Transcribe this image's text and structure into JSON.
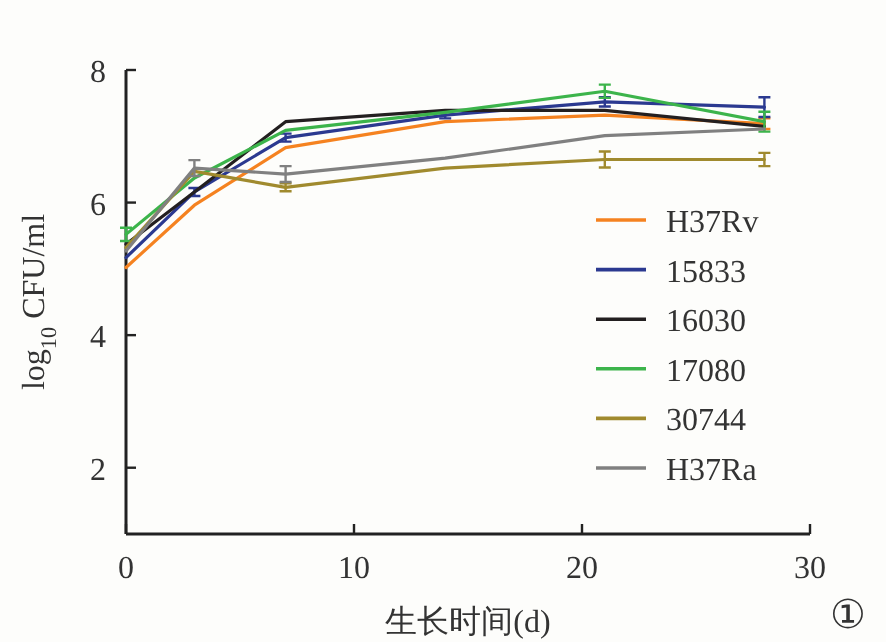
{
  "chart_data": {
    "type": "line",
    "xlabel": "生长时间(d)",
    "ylabel": "log$_{10}$ CFU/ml",
    "annotations": [
      "①"
    ],
    "x": [
      0,
      3,
      7,
      14,
      21,
      28
    ],
    "xlim": [
      0,
      30
    ],
    "xticks": [
      0,
      10,
      20,
      30
    ],
    "ylim": [
      1,
      8
    ],
    "yticks": [
      2,
      4,
      6,
      8
    ],
    "grid": false,
    "legend": "right",
    "line_style": "solid",
    "series": [
      {
        "name": "H37Rv",
        "color": "#f58220",
        "values": [
          5.02,
          5.96,
          6.83,
          7.22,
          7.32,
          7.19
        ],
        "errors": [
          null,
          null,
          null,
          null,
          null,
          0.08
        ]
      },
      {
        "name": "15833",
        "color": "#2b3990",
        "values": [
          5.17,
          6.16,
          6.98,
          7.32,
          7.52,
          7.44
        ],
        "errors": [
          null,
          0.06,
          0.06,
          0.05,
          0.07,
          0.15
        ]
      },
      {
        "name": "16030",
        "color": "#231f20",
        "values": [
          5.37,
          6.16,
          7.22,
          7.39,
          7.39,
          7.15
        ],
        "errors": [
          null,
          null,
          null,
          null,
          null,
          null
        ]
      },
      {
        "name": "17080",
        "color": "#3cb44b",
        "values": [
          5.52,
          6.37,
          7.09,
          7.36,
          7.68,
          7.22
        ],
        "errors": [
          0.1,
          null,
          null,
          null,
          0.1,
          0.15
        ]
      },
      {
        "name": "30744",
        "color": "#a08a2e",
        "values": [
          5.32,
          6.47,
          6.23,
          6.52,
          6.65,
          6.65
        ],
        "errors": [
          null,
          null,
          0.06,
          null,
          0.12,
          0.1
        ]
      },
      {
        "name": "H37Ra",
        "color": "#808080",
        "values": [
          5.27,
          6.52,
          6.43,
          6.67,
          7.01,
          7.11
        ],
        "errors": [
          null,
          0.12,
          0.12,
          null,
          null,
          null
        ]
      }
    ]
  }
}
